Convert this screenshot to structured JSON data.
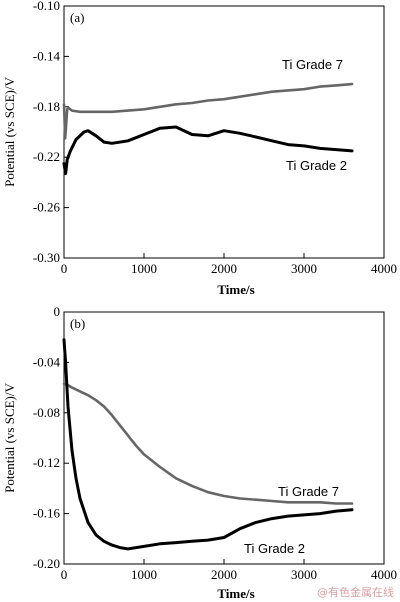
{
  "watermark": "@有色金属在线",
  "chart_data": [
    {
      "type": "line",
      "panel_label": "(a)",
      "xlabel": "Time/s",
      "ylabel": "Potential (vs SCE)/V",
      "xlim": [
        0,
        4000
      ],
      "ylim": [
        -0.3,
        -0.1
      ],
      "xticks": [
        0,
        1000,
        2000,
        3000,
        4000
      ],
      "yticks": [
        -0.3,
        -0.26,
        -0.22,
        -0.18,
        -0.14,
        -0.1
      ],
      "ytick_labels": [
        "-0.30",
        "-0.26",
        "-0.22",
        "-0.18",
        "-0.14",
        "-0.10"
      ],
      "grid": false,
      "series": [
        {
          "name": "Ti Grade 7",
          "color": "#666666",
          "x": [
            0,
            15,
            40,
            60,
            100,
            200,
            400,
            600,
            800,
            1000,
            1200,
            1400,
            1600,
            1800,
            2000,
            2200,
            2400,
            2600,
            2800,
            3000,
            3200,
            3400,
            3600
          ],
          "y": [
            -0.178,
            -0.205,
            -0.182,
            -0.181,
            -0.183,
            -0.184,
            -0.184,
            -0.184,
            -0.183,
            -0.182,
            -0.18,
            -0.178,
            -0.177,
            -0.175,
            -0.174,
            -0.172,
            -0.17,
            -0.168,
            -0.167,
            -0.166,
            -0.164,
            -0.163,
            -0.162
          ]
        },
        {
          "name": "Ti Grade 2",
          "color": "#000000",
          "x": [
            0,
            20,
            40,
            80,
            150,
            250,
            300,
            400,
            500,
            600,
            800,
            1000,
            1200,
            1400,
            1600,
            1800,
            2000,
            2200,
            2400,
            2600,
            2800,
            3000,
            3200,
            3400,
            3600
          ],
          "y": [
            -0.225,
            -0.233,
            -0.222,
            -0.215,
            -0.206,
            -0.2,
            -0.199,
            -0.203,
            -0.208,
            -0.209,
            -0.207,
            -0.202,
            -0.197,
            -0.196,
            -0.202,
            -0.203,
            -0.199,
            -0.201,
            -0.204,
            -0.207,
            -0.21,
            -0.211,
            -0.213,
            -0.214,
            -0.215
          ]
        }
      ]
    },
    {
      "type": "line",
      "panel_label": "(b)",
      "xlabel": "Time/s",
      "ylabel": "Potential (vs SCE)/V",
      "xlim": [
        0,
        4000
      ],
      "ylim": [
        -0.2,
        0
      ],
      "xticks": [
        0,
        1000,
        2000,
        3000,
        4000
      ],
      "yticks": [
        -0.2,
        -0.16,
        -0.12,
        -0.08,
        -0.04,
        0
      ],
      "ytick_labels": [
        "-0.20",
        "-0.16",
        "-0.12",
        "-0.08",
        "-0.04",
        "0"
      ],
      "grid": false,
      "series": [
        {
          "name": "Ti Grade 7",
          "color": "#666666",
          "x": [
            0,
            50,
            100,
            200,
            300,
            400,
            500,
            600,
            700,
            800,
            900,
            1000,
            1200,
            1400,
            1600,
            1800,
            2000,
            2200,
            2400,
            2600,
            2800,
            3000,
            3200,
            3400,
            3600
          ],
          "y": [
            -0.057,
            -0.058,
            -0.06,
            -0.063,
            -0.066,
            -0.07,
            -0.075,
            -0.082,
            -0.09,
            -0.098,
            -0.106,
            -0.113,
            -0.123,
            -0.132,
            -0.138,
            -0.143,
            -0.146,
            -0.148,
            -0.149,
            -0.15,
            -0.151,
            -0.151,
            -0.151,
            -0.152,
            -0.152
          ]
        },
        {
          "name": "Ti Grade 2",
          "color": "#000000",
          "x": [
            0,
            20,
            50,
            100,
            150,
            200,
            300,
            400,
            500,
            600,
            700,
            800,
            1000,
            1200,
            1400,
            1600,
            1800,
            2000,
            2200,
            2400,
            2600,
            2800,
            3000,
            3200,
            3400,
            3600
          ],
          "y": [
            -0.022,
            -0.04,
            -0.075,
            -0.11,
            -0.132,
            -0.148,
            -0.167,
            -0.177,
            -0.182,
            -0.185,
            -0.187,
            -0.188,
            -0.186,
            -0.184,
            -0.183,
            -0.182,
            -0.181,
            -0.179,
            -0.172,
            -0.167,
            -0.164,
            -0.162,
            -0.161,
            -0.16,
            -0.158,
            -0.157
          ]
        }
      ]
    }
  ]
}
